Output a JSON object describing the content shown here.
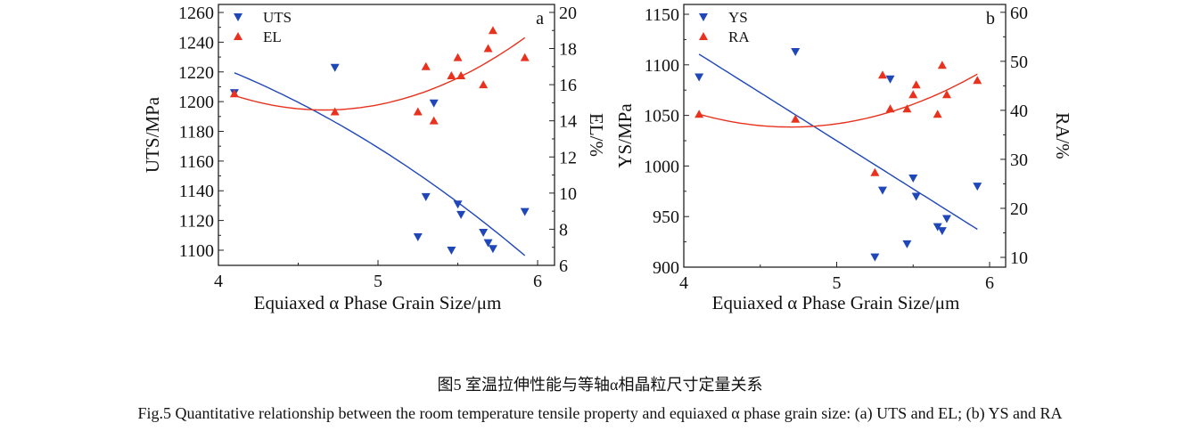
{
  "chart_data": [
    {
      "type": "scatter",
      "panel_label": "a",
      "xlabel": "Equiaxed α Phase Grain Size/μm",
      "ylabel": "UTS/MPa",
      "ylabel_right": "EL/%",
      "xlim": [
        4,
        6.106
      ],
      "ylim": [
        1089.8,
        1265.4
      ],
      "ylim_right": [
        6,
        20.44
      ],
      "xticks": [
        4,
        5,
        6
      ],
      "yticks": [
        1100,
        1120,
        1140,
        1160,
        1180,
        1200,
        1220,
        1240,
        1260
      ],
      "yticks_right": [
        6,
        8,
        10,
        12,
        14,
        16,
        18,
        20
      ],
      "legend_position": "top-left",
      "grid": false,
      "series": [
        {
          "name": "UTS",
          "axis": "left",
          "marker": "triangle-down",
          "color": "#1f47b8",
          "x": [
            4.1,
            4.73,
            5.25,
            5.3,
            5.35,
            5.46,
            5.5,
            5.52,
            5.66,
            5.69,
            5.72,
            5.92
          ],
          "y": [
            1206,
            1223,
            1109,
            1136,
            1199,
            1100,
            1131,
            1124,
            1112,
            1105,
            1101,
            1126
          ],
          "fit": [
            [
              4.1,
              1219.4
            ],
            [
              5.0,
              1169
            ],
            [
              5.92,
              1096.4
            ]
          ]
        },
        {
          "name": "EL",
          "axis": "right",
          "marker": "triangle-up",
          "color": "#e8321e",
          "x": [
            4.1,
            4.73,
            5.25,
            5.3,
            5.35,
            5.46,
            5.5,
            5.52,
            5.66,
            5.69,
            5.72,
            5.92
          ],
          "y": [
            15.5,
            14.5,
            14.5,
            17.0,
            14.0,
            16.5,
            17.5,
            16.5,
            16.0,
            18.0,
            19.0,
            17.5
          ],
          "fit": [
            [
              4.1,
              15.4
            ],
            [
              4.68,
              14.6
            ],
            [
              5.92,
              18.6
            ]
          ]
        }
      ]
    },
    {
      "type": "scatter",
      "panel_label": "b",
      "xlabel": "Equiaxed α Phase Grain Size/μm",
      "ylabel": "YS/MPa",
      "ylabel_right": "RA/%",
      "xlim": [
        4,
        6.105
      ],
      "ylim": [
        900,
        1159.7
      ],
      "ylim_right": [
        8,
        61.6
      ],
      "xticks": [
        4,
        5,
        6
      ],
      "yticks": [
        900,
        950,
        1000,
        1050,
        1100,
        1150
      ],
      "yticks_right": [
        10,
        20,
        30,
        40,
        50,
        60
      ],
      "legend_position": "top-left",
      "grid": false,
      "series": [
        {
          "name": "YS",
          "axis": "left",
          "marker": "triangle-down",
          "color": "#1f47b8",
          "x": [
            4.1,
            4.73,
            5.25,
            5.3,
            5.35,
            5.46,
            5.5,
            5.52,
            5.66,
            5.69,
            5.72,
            5.92
          ],
          "y": [
            1088,
            1113,
            910,
            976,
            1086,
            923,
            988,
            970,
            940,
            936,
            948,
            980
          ],
          "fit": [
            [
              4.1,
              1110.5
            ],
            [
              5.01,
              1024
            ],
            [
              5.92,
              937.4
            ]
          ]
        },
        {
          "name": "RA",
          "axis": "right",
          "marker": "triangle-up",
          "color": "#e8321e",
          "x": [
            4.1,
            4.73,
            5.25,
            5.3,
            5.35,
            5.46,
            5.5,
            5.52,
            5.66,
            5.69,
            5.72,
            5.92
          ],
          "y": [
            39.2,
            38.2,
            27.3,
            47.2,
            40.3,
            40.3,
            43.2,
            45.2,
            39.2,
            49.2,
            43.2,
            46.1
          ],
          "fit": [
            [
              4.1,
              39.2
            ],
            [
              4.74,
              36.6
            ],
            [
              5.92,
              47.4
            ]
          ]
        }
      ]
    }
  ],
  "caption": {
    "chinese": "图5  室温拉伸性能与等轴α相晶粒尺寸定量关系",
    "english": "Fig.5  Quantitative relationship between the room temperature tensile property and equiaxed α phase grain size: (a) UTS and EL; (b) YS and RA"
  }
}
